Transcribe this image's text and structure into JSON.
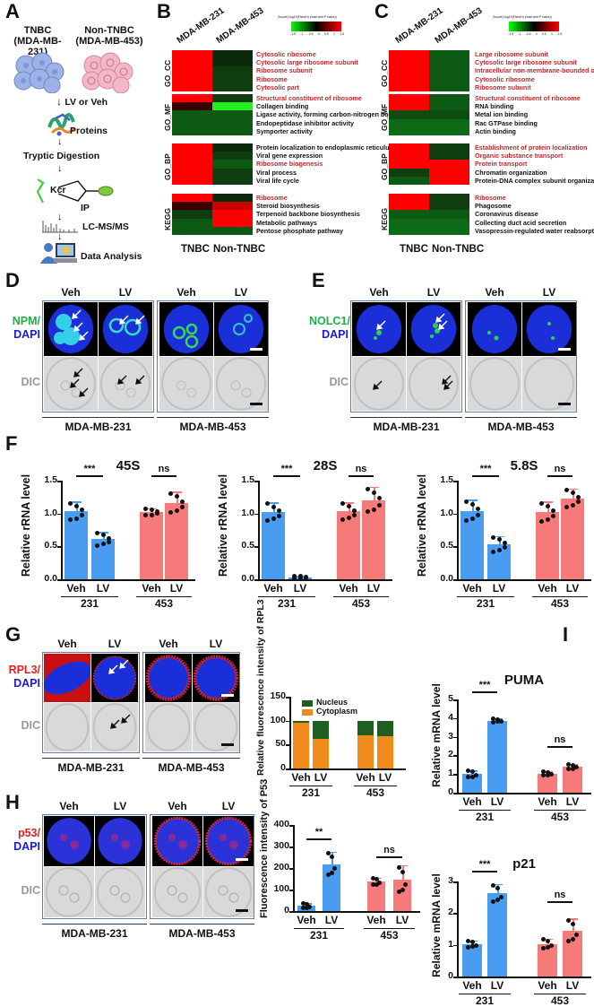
{
  "panel_labels": {
    "A": "A",
    "B": "B",
    "C": "C",
    "D": "D",
    "E": "E",
    "F": "F",
    "G": "G",
    "H": "H",
    "I": "I"
  },
  "panel_A": {
    "cell1_title": "TNBC",
    "cell1_sub": "(MDA-MB-231)",
    "cell2_title": "Non-TNBC",
    "cell2_sub": "(MDA-MB-453)",
    "steps": [
      "LV or Veh",
      "Proteins",
      "Tryptic Digestion",
      "Kcr",
      "IP",
      "LC-MS/MS",
      "Data Analysis"
    ],
    "arrow": "↓"
  },
  "heatmap_legend": {
    "title": "Zscore(-log10(Fisher's exact test P value))",
    "ticks": [
      "-1.5",
      "-1",
      "-0.5",
      "0",
      "0.5",
      "1",
      "1.5"
    ]
  },
  "panel_B": {
    "columns": [
      "MDA-MB-231",
      "MDA-MB-453"
    ],
    "footer": [
      "TNBC",
      "Non-TNBC"
    ],
    "groups": [
      {
        "name": "GO_CC",
        "terms": [
          {
            "label": "Cytosolic ribosome",
            "hi": true,
            "c": [
              "#ff0000",
              "#0a2a0a"
            ]
          },
          {
            "label": "Cytosolic large ribosome subunit",
            "hi": true,
            "c": [
              "#ff0000",
              "#0a2a0a"
            ]
          },
          {
            "label": "Ribosome subunit",
            "hi": true,
            "c": [
              "#ff0000",
              "#0e3d10"
            ]
          },
          {
            "label": "Ribosome",
            "hi": true,
            "c": [
              "#ff0000",
              "#0e3d10"
            ]
          },
          {
            "label": "Cytosolic part",
            "hi": true,
            "c": [
              "#ff0000",
              "#0e3d10"
            ]
          }
        ]
      },
      {
        "name": "GO_MF",
        "terms": [
          {
            "label": "Structural constituent of ribosome",
            "hi": true,
            "c": [
              "#ff0000",
              "#0e3d10"
            ]
          },
          {
            "label": "Collagen binding",
            "hi": false,
            "c": [
              "#3a0000",
              "#22ee22"
            ]
          },
          {
            "label": "Ligase activity, forming carbon-nitrogen bonds",
            "hi": false,
            "c": [
              "#0d5a14",
              "#0d5a14"
            ]
          },
          {
            "label": "Endopeptidase inhibitor activity",
            "hi": false,
            "c": [
              "#0d5a14",
              "#0d5a14"
            ]
          },
          {
            "label": "Symporter activity",
            "hi": false,
            "c": [
              "#0d5a14",
              "#0d5a14"
            ]
          }
        ]
      },
      {
        "name": "GO_BP",
        "terms": [
          {
            "label": "Protein localization to endoplasmic reticulum",
            "hi": false,
            "c": [
              "#ff0000",
              "#0a2a0a"
            ]
          },
          {
            "label": "Viral gene expression",
            "hi": false,
            "c": [
              "#ff0000",
              "#0e3d10"
            ]
          },
          {
            "label": "Ribosome biogenesis",
            "hi": true,
            "c": [
              "#ff0000",
              "#0d5a14"
            ]
          },
          {
            "label": "Viral process",
            "hi": false,
            "c": [
              "#ff0000",
              "#0e3d10"
            ]
          },
          {
            "label": "Viral life cycle",
            "hi": false,
            "c": [
              "#ff0000",
              "#0e3d10"
            ]
          }
        ]
      },
      {
        "name": "KEGG",
        "terms": [
          {
            "label": "Ribosome",
            "hi": true,
            "c": [
              "#ff0000",
              "#0a2a0a"
            ]
          },
          {
            "label": "Steroid biosynthesis",
            "hi": false,
            "c": [
              "#3a0000",
              "#cc0000"
            ]
          },
          {
            "label": "Terpenoid backbone biosynthesis",
            "hi": false,
            "c": [
              "#0e3d10",
              "#ff0000"
            ]
          },
          {
            "label": "Metabolic pathways",
            "hi": false,
            "c": [
              "#0d5a14",
              "#ff0000"
            ]
          },
          {
            "label": "Pentose phosphate pathway",
            "hi": false,
            "c": [
              "#0d5a14",
              "#0d5a14"
            ]
          }
        ]
      }
    ]
  },
  "panel_C": {
    "columns": [
      "MDA-MB-231",
      "MDA-MB-453"
    ],
    "footer": [
      "TNBC",
      "Non-TNBC"
    ],
    "groups": [
      {
        "name": "GO_CC",
        "terms": [
          {
            "label": "Large ribosome subunit",
            "hi": true,
            "c": [
              "#ff0000",
              "#0d5a14"
            ]
          },
          {
            "label": "Cytosolic large ribosome subunit",
            "hi": true,
            "c": [
              "#ff0000",
              "#0d5a14"
            ]
          },
          {
            "label": "Intracellular non-membrane-bounded organelle",
            "hi": true,
            "c": [
              "#ff0000",
              "#0d5a14"
            ]
          },
          {
            "label": "Cytosolic ribosome",
            "hi": true,
            "c": [
              "#ff0000",
              "#0d5a14"
            ]
          },
          {
            "label": "Ribosome subunit",
            "hi": true,
            "c": [
              "#ff0000",
              "#0d5a14"
            ]
          }
        ]
      },
      {
        "name": "GO_MF",
        "terms": [
          {
            "label": "Structural constituent of ribosome",
            "hi": true,
            "c": [
              "#ff0000",
              "#0d5a14"
            ]
          },
          {
            "label": "RNA binding",
            "hi": false,
            "c": [
              "#ff0000",
              "#0d5a14"
            ]
          },
          {
            "label": "Metal ion binding",
            "hi": false,
            "c": [
              "#0e4d12",
              "#0e4d12"
            ]
          },
          {
            "label": "Rac GTPase binding",
            "hi": false,
            "c": [
              "#0d6a16",
              "#0d6a16"
            ]
          },
          {
            "label": "Actin binding",
            "hi": false,
            "c": [
              "#0d6a16",
              "#0d6a16"
            ]
          }
        ]
      },
      {
        "name": "GO_BP",
        "terms": [
          {
            "label": "Establishment of protein localization",
            "hi": true,
            "c": [
              "#ff0000",
              "#0e3d10"
            ]
          },
          {
            "label": "Organic substance transport",
            "hi": true,
            "c": [
              "#ff0000",
              "#0e3d10"
            ]
          },
          {
            "label": "Protein transport",
            "hi": true,
            "c": [
              "#ff0000",
              "#ff0000"
            ]
          },
          {
            "label": "Chromatin organization",
            "hi": false,
            "c": [
              "#0e3d10",
              "#ff0000"
            ]
          },
          {
            "label": "Protein-DNA complex subunit organization",
            "hi": false,
            "c": [
              "#0d5a14",
              "#ff0000"
            ]
          }
        ]
      },
      {
        "name": "KEGG",
        "terms": [
          {
            "label": "Ribosome",
            "hi": true,
            "c": [
              "#ff0000",
              "#0e3d10"
            ]
          },
          {
            "label": "Phagosome",
            "hi": false,
            "c": [
              "#ff0000",
              "#0e3d10"
            ]
          },
          {
            "label": "Coronavirus disease",
            "hi": false,
            "c": [
              "#0d5a14",
              "#0d5a14"
            ]
          },
          {
            "label": "Collecting duct acid secretion",
            "hi": false,
            "c": [
              "#0d6a16",
              "#0d6a16"
            ]
          },
          {
            "label": "Vasopressin-regulated water reabsorption",
            "hi": false,
            "c": [
              "#0d6a16",
              "#0d6a16"
            ]
          }
        ]
      }
    ]
  },
  "panel_D": {
    "stain_green": "NPM",
    "slash": "/",
    "stain_blue": "DAPI",
    "dic": "DIC",
    "conds": [
      "Veh",
      "LV",
      "Veh",
      "LV"
    ],
    "cell_lines": [
      "MDA-MB-231",
      "MDA-MB-453"
    ]
  },
  "panel_E": {
    "stain_green": "NOLC1",
    "slash": "/",
    "stain_blue": "DAPI",
    "dic": "DIC",
    "conds": [
      "Veh",
      "LV",
      "Veh",
      "LV"
    ],
    "cell_lines": [
      "MDA-MB-231",
      "MDA-MB-453"
    ]
  },
  "panel_G": {
    "stain_red": "RPL3",
    "slash": "/",
    "stain_blue": "DAPI",
    "dic": "DIC",
    "conds": [
      "Veh",
      "LV",
      "Veh",
      "LV"
    ],
    "cell_lines": [
      "MDA-MB-231",
      "MDA-MB-453"
    ]
  },
  "panel_H": {
    "stain_red": "p53",
    "slash": "/",
    "stain_blue": "DAPI",
    "dic": "DIC",
    "conds": [
      "Veh",
      "LV",
      "Veh",
      "LV"
    ],
    "cell_lines": [
      "MDA-MB-231",
      "MDA-MB-453"
    ]
  },
  "colors": {
    "blue_bar": "#4a9cf0",
    "red_bar": "#f67a7a",
    "nucleus": "#1e5e1e",
    "cytoplasm": "#f08a1c",
    "frame": "#5f7ea8",
    "hi_text": "#c0282d"
  },
  "chart_data": [
    {
      "id": "F-45S",
      "type": "bar",
      "title": "45S",
      "ylabel": "Relative rRNA level",
      "ylim": [
        0,
        1.5
      ],
      "yticks": [
        "0.0",
        "0.5",
        "1.0",
        "1.5"
      ],
      "categories": [
        "Veh",
        "LV",
        "Veh",
        "LV"
      ],
      "groups": [
        "231",
        "453"
      ],
      "values": [
        1.03,
        0.61,
        1.02,
        1.16
      ],
      "errors": [
        0.15,
        0.11,
        0.06,
        0.17
      ],
      "significance": [
        "***",
        "ns"
      ]
    },
    {
      "id": "F-28S",
      "type": "bar",
      "title": "28S",
      "ylabel": "Relative rRNA level",
      "ylim": [
        0,
        1.5
      ],
      "yticks": [
        "0.0",
        "0.5",
        "1.0",
        "1.5"
      ],
      "categories": [
        "Veh",
        "LV",
        "Veh",
        "LV"
      ],
      "groups": [
        "231",
        "453"
      ],
      "values": [
        1.02,
        0.03,
        1.03,
        1.2
      ],
      "errors": [
        0.15,
        0.02,
        0.14,
        0.21
      ],
      "significance": [
        "***",
        "ns"
      ]
    },
    {
      "id": "F-5.8S",
      "type": "bar",
      "title": "5.8S",
      "ylabel": "Relative rRNA level",
      "ylim": [
        0,
        1.5
      ],
      "yticks": [
        "0.0",
        "0.5",
        "1.0",
        "1.5"
      ],
      "categories": [
        "Veh",
        "LV",
        "Veh",
        "LV"
      ],
      "groups": [
        "231",
        "453"
      ],
      "values": [
        1.04,
        0.53,
        1.02,
        1.23
      ],
      "errors": [
        0.17,
        0.13,
        0.16,
        0.15
      ],
      "significance": [
        "***",
        "ns"
      ]
    },
    {
      "id": "G-RPL3",
      "type": "bar",
      "stacked": true,
      "ylabel": "Relative fluorescence intensity of RPL3",
      "ylim": [
        0,
        150
      ],
      "yticks": [
        "0",
        "50",
        "100",
        "150"
      ],
      "categories": [
        "Veh",
        "LV",
        "Veh",
        "LV"
      ],
      "groups": [
        "231",
        "453"
      ],
      "series": [
        {
          "name": "Cytoplasm",
          "values": [
            96,
            62,
            70,
            68
          ]
        },
        {
          "name": "Nucleus",
          "values": [
            4,
            38,
            30,
            32
          ]
        }
      ],
      "legend": [
        "Nucleus",
        "Cytoplasm"
      ]
    },
    {
      "id": "H-P53",
      "type": "bar",
      "ylabel": "Fluorescence intensity of P53",
      "ylim": [
        0,
        400
      ],
      "yticks": [
        "0",
        "100",
        "200",
        "300",
        "400"
      ],
      "categories": [
        "Veh",
        "LV",
        "Veh",
        "LV"
      ],
      "groups": [
        "231",
        "453"
      ],
      "values": [
        25,
        218,
        137,
        145
      ],
      "errors": [
        12,
        58,
        18,
        68
      ],
      "significance": [
        "**",
        "ns"
      ]
    },
    {
      "id": "I-PUMA",
      "type": "bar",
      "title": "PUMA",
      "ylabel": "Relative mRNA level",
      "ylim": [
        0,
        5
      ],
      "yticks": [
        "0",
        "1",
        "2",
        "3",
        "4",
        "5"
      ],
      "categories": [
        "Veh",
        "LV",
        "Veh",
        "LV"
      ],
      "groups": [
        "231",
        "453"
      ],
      "values": [
        1.0,
        3.87,
        1.02,
        1.4
      ],
      "errors": [
        0.2,
        0.1,
        0.12,
        0.15
      ],
      "significance": [
        "***",
        "ns"
      ]
    },
    {
      "id": "I-p21",
      "type": "bar",
      "title": "p21",
      "ylabel": "Relative mRNA level",
      "ylim": [
        0,
        3
      ],
      "yticks": [
        "0",
        "1",
        "2",
        "3"
      ],
      "categories": [
        "Veh",
        "LV",
        "Veh",
        "LV"
      ],
      "groups": [
        "231",
        "453"
      ],
      "values": [
        1.02,
        2.62,
        1.03,
        1.45
      ],
      "errors": [
        0.12,
        0.3,
        0.16,
        0.38
      ],
      "significance": [
        "***",
        "ns"
      ]
    }
  ]
}
